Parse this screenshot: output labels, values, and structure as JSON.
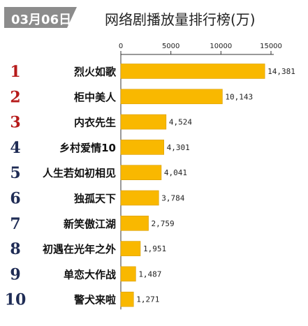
{
  "date_badge": "03月06日",
  "colors": {
    "badge_bg": "#8c8c8c",
    "bar": "#f9b800",
    "bar_edge": "#d79c00",
    "rank_top": "#b61a1a",
    "rank_other": "#1f2c55"
  },
  "chart_data": {
    "type": "bar",
    "orientation": "horizontal",
    "title": "网络剧播放量排行榜(万)",
    "ranks": [
      "1",
      "2",
      "3",
      "4",
      "5",
      "6",
      "7",
      "8",
      "9",
      "10"
    ],
    "categories": [
      "烈火如歌",
      "柜中美人",
      "内衣先生",
      "乡村爱情10",
      "人生若如初相见",
      "独孤天下",
      "新笑傲江湖",
      "初遇在光年之外",
      "单恋大作战",
      "警犬来啦"
    ],
    "values": [
      14381,
      10143,
      4524,
      4301,
      4041,
      3784,
      2759,
      1951,
      1487,
      1271
    ],
    "value_labels": [
      "14,381",
      "10,143",
      "4,524",
      "4,301",
      "4,041",
      "3,784",
      "2,759",
      "1,951",
      "1,487",
      "1,271"
    ],
    "x_ticks": [
      0,
      5000,
      10000,
      15000
    ],
    "x_tick_labels": [
      "0",
      "5000",
      "10000",
      "15000"
    ],
    "xlim": [
      0,
      15000
    ],
    "axis_position": "top",
    "grid": false,
    "legend": "none"
  }
}
